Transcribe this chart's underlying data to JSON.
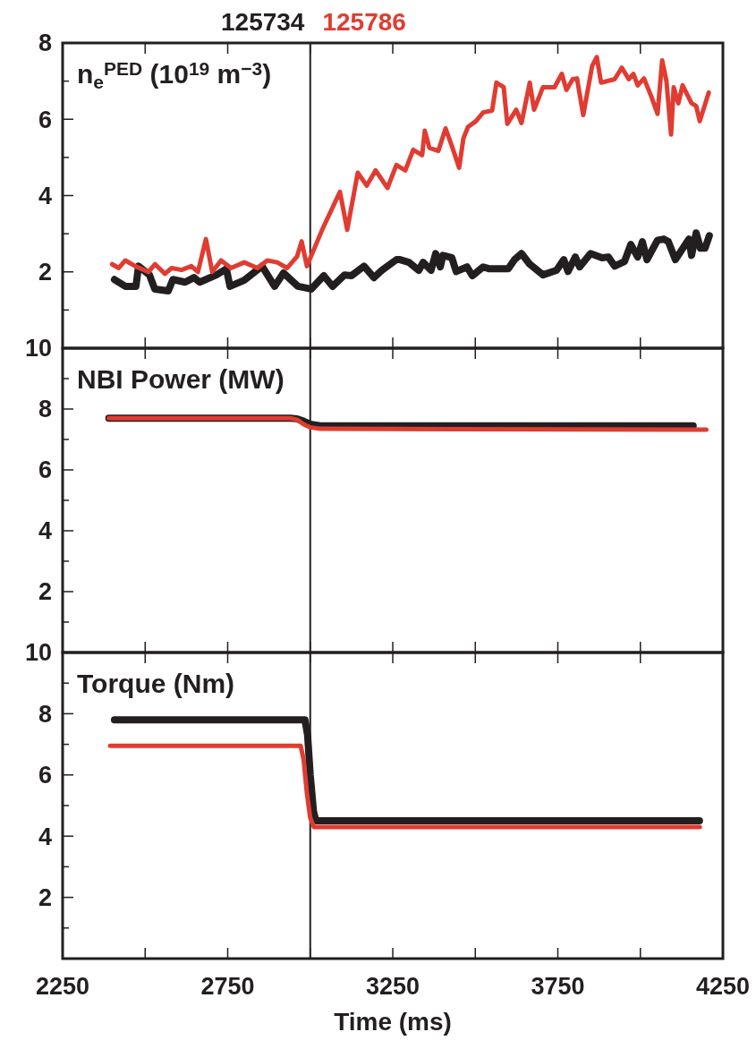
{
  "chart_data": [
    {
      "type": "line",
      "title": "n$_{e}$$^{PED}$ (10$^{19}$ m$^{−3}$)",
      "legend": "top",
      "tick_labels": "y",
      "xlim": [
        2250,
        4250
      ],
      "xticks": [
        {
          "value": 2250,
          "label": null
        },
        {
          "value": 2500,
          "label": null
        },
        {
          "value": 2750,
          "label": null
        },
        {
          "value": 3000,
          "label": null
        },
        {
          "value": 3250,
          "label": null
        },
        {
          "value": 3500,
          "label": null
        },
        {
          "value": 3750,
          "label": null
        },
        {
          "value": 4000,
          "label": null
        },
        {
          "value": 4250,
          "label": null
        }
      ],
      "ylim": [
        0,
        8
      ],
      "yticks": [
        {
          "value": 1,
          "label": null
        },
        2,
        {
          "value": 3,
          "label": null
        },
        4,
        {
          "value": 5,
          "label": null
        },
        6,
        {
          "value": 7,
          "label": null
        },
        8
      ],
      "ref_lines": [
        {
          "axis": "x",
          "value": 3000,
          "color": "#231f20"
        }
      ],
      "series": [
        {
          "name": "125734",
          "color": "#231f20",
          "x": [
            2407,
            2440,
            2472,
            2480,
            2513,
            2529,
            2570,
            2584,
            2621,
            2648,
            2665,
            2716,
            2746,
            2757,
            2800,
            2854,
            2892,
            2919,
            2963,
            3003,
            3041,
            3068,
            3104,
            3125,
            3163,
            3193,
            3217,
            3261,
            3272,
            3299,
            3329,
            3342,
            3366,
            3380,
            3394,
            3402,
            3429,
            3442,
            3475,
            3491,
            3524,
            3543,
            3600,
            3619,
            3640,
            3665,
            3705,
            3746,
            3768,
            3781,
            3803,
            3816,
            3849,
            3884,
            3903,
            3922,
            3952,
            3971,
            3992,
            4006,
            4020,
            4052,
            4071,
            4085,
            4106,
            4147,
            4155,
            4169,
            4182,
            4196,
            4209
          ],
          "values": [
            1.8,
            1.62,
            1.62,
            2.15,
            1.92,
            1.55,
            1.5,
            1.8,
            1.73,
            1.85,
            1.73,
            1.92,
            2.08,
            1.62,
            1.78,
            2.15,
            1.62,
            1.97,
            1.62,
            1.55,
            1.9,
            1.62,
            1.92,
            1.9,
            2.15,
            1.85,
            2.04,
            2.32,
            2.32,
            2.25,
            2.04,
            2.25,
            2.04,
            2.48,
            2.13,
            2.43,
            2.37,
            2.01,
            2.13,
            1.9,
            2.13,
            2.08,
            2.08,
            2.32,
            2.48,
            2.2,
            1.92,
            2.04,
            2.32,
            2.01,
            2.39,
            2.13,
            2.48,
            2.37,
            2.39,
            2.15,
            2.27,
            2.72,
            2.39,
            2.79,
            2.32,
            2.83,
            2.86,
            2.79,
            2.32,
            2.86,
            2.43,
            3.02,
            2.62,
            2.62,
            2.95
          ]
        },
        {
          "name": "125786",
          "color": "#e03c31",
          "x": [
            2400,
            2420,
            2440,
            2470,
            2510,
            2530,
            2560,
            2580,
            2610,
            2640,
            2660,
            2684,
            2703,
            2730,
            2760,
            2800,
            2840,
            2870,
            2900,
            2930,
            2960,
            2974,
            2990,
            3036,
            3090,
            3112,
            3144,
            3171,
            3198,
            3234,
            3261,
            3288,
            3312,
            3339,
            3347,
            3361,
            3388,
            3410,
            3429,
            3451,
            3464,
            3478,
            3502,
            3524,
            3551,
            3564,
            3586,
            3597,
            3624,
            3640,
            3665,
            3678,
            3705,
            3740,
            3762,
            3776,
            3795,
            3808,
            3827,
            3854,
            3868,
            3881,
            3922,
            3944,
            3965,
            3979,
            3992,
            4011,
            4033,
            4052,
            4066,
            4079,
            4093,
            4101,
            4115,
            4128,
            4155,
            4169,
            4180,
            4207
          ],
          "values": [
            2.2,
            2.1,
            2.3,
            2.15,
            2.0,
            2.2,
            1.95,
            2.1,
            2.05,
            2.15,
            2.0,
            2.86,
            2.0,
            2.3,
            2.1,
            2.25,
            2.1,
            2.3,
            2.25,
            2.1,
            2.4,
            2.8,
            2.15,
            3.1,
            4.1,
            3.1,
            4.6,
            4.26,
            4.66,
            4.2,
            4.8,
            4.66,
            5.2,
            5.06,
            5.7,
            5.25,
            5.17,
            5.76,
            5.3,
            4.73,
            5.5,
            5.8,
            5.95,
            6.18,
            6.23,
            6.96,
            6.84,
            5.88,
            6.25,
            5.9,
            6.96,
            6.25,
            6.84,
            6.84,
            7.19,
            6.77,
            7.05,
            7.07,
            6.11,
            7.4,
            7.63,
            6.96,
            7.05,
            7.35,
            7.05,
            7.19,
            6.89,
            7.07,
            6.6,
            6.14,
            7.54,
            7.0,
            5.6,
            6.84,
            6.42,
            6.89,
            6.42,
            6.35,
            5.95,
            6.7
          ]
        }
      ]
    },
    {
      "type": "line",
      "title": "NBI Power (MW)",
      "tick_labels": "y",
      "xlim": [
        2250,
        4250
      ],
      "xticks": [
        {
          "value": 2250,
          "label": null
        },
        {
          "value": 2500,
          "label": null
        },
        {
          "value": 2750,
          "label": null
        },
        {
          "value": 3000,
          "label": null
        },
        {
          "value": 3250,
          "label": null
        },
        {
          "value": 3500,
          "label": null
        },
        {
          "value": 3750,
          "label": null
        },
        {
          "value": 4000,
          "label": null
        },
        {
          "value": 4250,
          "label": null
        }
      ],
      "ylim": [
        0,
        10
      ],
      "yticks": [
        {
          "value": 1,
          "label": null
        },
        2,
        {
          "value": 3,
          "label": null
        },
        4,
        {
          "value": 5,
          "label": null
        },
        6,
        {
          "value": 7,
          "label": null
        },
        8,
        {
          "value": 9,
          "label": null
        },
        10
      ],
      "ref_lines": [
        {
          "axis": "x",
          "value": 3000,
          "color": "#231f20"
        }
      ],
      "series": [
        {
          "color": "#231f20",
          "x": [
            2390,
            2940,
            2960,
            2980,
            3000,
            3030,
            4160
          ],
          "values": [
            7.7,
            7.7,
            7.68,
            7.6,
            7.5,
            7.45,
            7.45
          ]
        },
        {
          "color": "#e03c31",
          "x": [
            2390,
            2940,
            2960,
            2980,
            3000,
            3030,
            4200
          ],
          "values": [
            7.7,
            7.7,
            7.65,
            7.5,
            7.4,
            7.35,
            7.32
          ]
        }
      ]
    },
    {
      "type": "line",
      "title": "Torque (Nm)",
      "xlabel": "Time (ms)",
      "xlim": [
        2250,
        4250
      ],
      "xticks": [
        2250,
        {
          "value": 2500,
          "label": null
        },
        2750,
        {
          "value": 3000,
          "label": null
        },
        3250,
        {
          "value": 3500,
          "label": null
        },
        3750,
        {
          "value": 4000,
          "label": null
        },
        4250
      ],
      "ylim": [
        0,
        10
      ],
      "yticks": [
        {
          "value": 1,
          "label": null
        },
        2,
        {
          "value": 3,
          "label": null
        },
        4,
        {
          "value": 5,
          "label": null
        },
        6,
        {
          "value": 7,
          "label": null
        },
        8,
        {
          "value": 9,
          "label": null
        },
        10
      ],
      "ref_lines": [
        {
          "axis": "x",
          "value": 3000,
          "color": "#231f20"
        }
      ],
      "series": [
        {
          "color": "#231f20",
          "x": [
            2407,
            2984,
            2992,
            3000,
            3010,
            3017,
            4179
          ],
          "values": [
            7.8,
            7.8,
            7.3,
            6.0,
            4.8,
            4.5,
            4.5
          ]
        },
        {
          "color": "#e03c31",
          "x": [
            2394,
            2971,
            2980,
            2990,
            3000,
            3011,
            4180
          ],
          "values": [
            6.95,
            6.95,
            6.5,
            5.4,
            4.6,
            4.3,
            4.3
          ]
        }
      ]
    }
  ]
}
